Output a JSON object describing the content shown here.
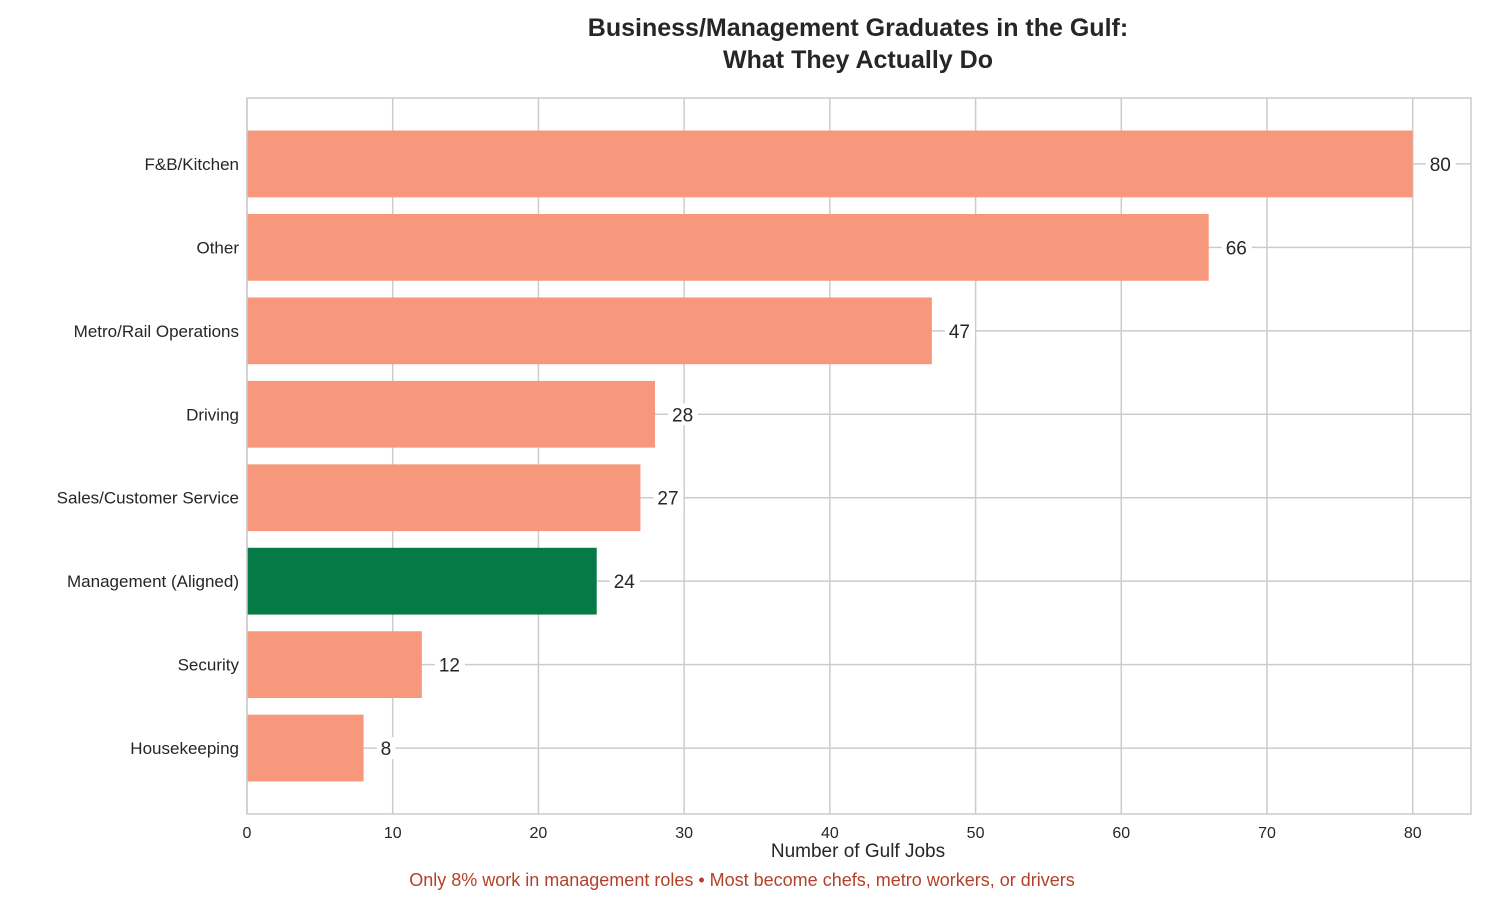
{
  "chart_data": {
    "type": "bar",
    "orientation": "horizontal",
    "title": "Business/Management Graduates in the Gulf:\nWhat They Actually Do",
    "xlabel": "Number of Gulf Jobs",
    "ylabel": "",
    "footnote": "Only 8% work in management roles • Most become chefs, metro workers, or drivers",
    "categories": [
      "F&B/Kitchen",
      "Other",
      "Metro/Rail Operations",
      "Driving",
      "Sales/Customer Service",
      "Management (Aligned)",
      "Security",
      "Housekeeping"
    ],
    "values": [
      80,
      66,
      47,
      28,
      27,
      24,
      12,
      8
    ],
    "highlight": [
      "Management (Aligned)"
    ],
    "xlim": [
      0,
      84
    ],
    "xticks": [
      0,
      10,
      20,
      30,
      40,
      50,
      60,
      70,
      80
    ],
    "grid": true,
    "colors": {
      "default": "#f7977c",
      "highlight": "#067a46",
      "footnote": "#b5402a",
      "grid": "#cccccc"
    }
  }
}
